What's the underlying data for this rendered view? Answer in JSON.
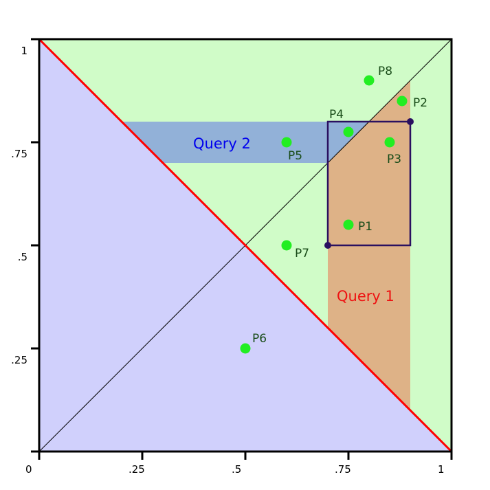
{
  "diagram": {
    "axis": {
      "x_ticks": [
        {
          "value": 0,
          "label": "0"
        },
        {
          "value": 0.25,
          "label": ".25"
        },
        {
          "value": 0.5,
          "label": ".5"
        },
        {
          "value": 0.75,
          "label": ".75"
        },
        {
          "value": 1,
          "label": "1"
        }
      ],
      "y_ticks": [
        {
          "value": 0.25,
          "label": ".25"
        },
        {
          "value": 0.5,
          "label": ".5"
        },
        {
          "value": 0.75,
          "label": ".75"
        },
        {
          "value": 1,
          "label": "1"
        }
      ]
    },
    "colors": {
      "upper_region": "#d0fcc8",
      "lower_region": "#d0d0fc",
      "anti_diagonal": "#ff0000",
      "query1_fill": "#deb287",
      "query2_fill": "#92b1d8",
      "query_rect_stroke": "#2a1060",
      "point_fill": "#22ee22",
      "point_label": "#1a4d1a",
      "query1_label": "#ee1111",
      "query2_label": "#0000ee"
    },
    "queries": [
      {
        "id": "query1",
        "label": "Query 1",
        "x_range": [
          0.7,
          0.9
        ],
        "y_range": [
          0.5,
          0.8
        ]
      },
      {
        "id": "query2",
        "label": "Query 2",
        "x_range": [
          0.2,
          0.7
        ],
        "y_range": [
          0.7,
          0.8
        ]
      }
    ],
    "points": [
      {
        "label": "P1",
        "x": 0.75,
        "y": 0.55
      },
      {
        "label": "P2",
        "x": 0.88,
        "y": 0.85
      },
      {
        "label": "P3",
        "x": 0.85,
        "y": 0.75
      },
      {
        "label": "P4",
        "x": 0.75,
        "y": 0.775
      },
      {
        "label": "P5",
        "x": 0.6,
        "y": 0.75
      },
      {
        "label": "P6",
        "x": 0.5,
        "y": 0.25
      },
      {
        "label": "P7",
        "x": 0.6,
        "y": 0.5
      },
      {
        "label": "P8",
        "x": 0.8,
        "y": 0.9
      }
    ]
  }
}
